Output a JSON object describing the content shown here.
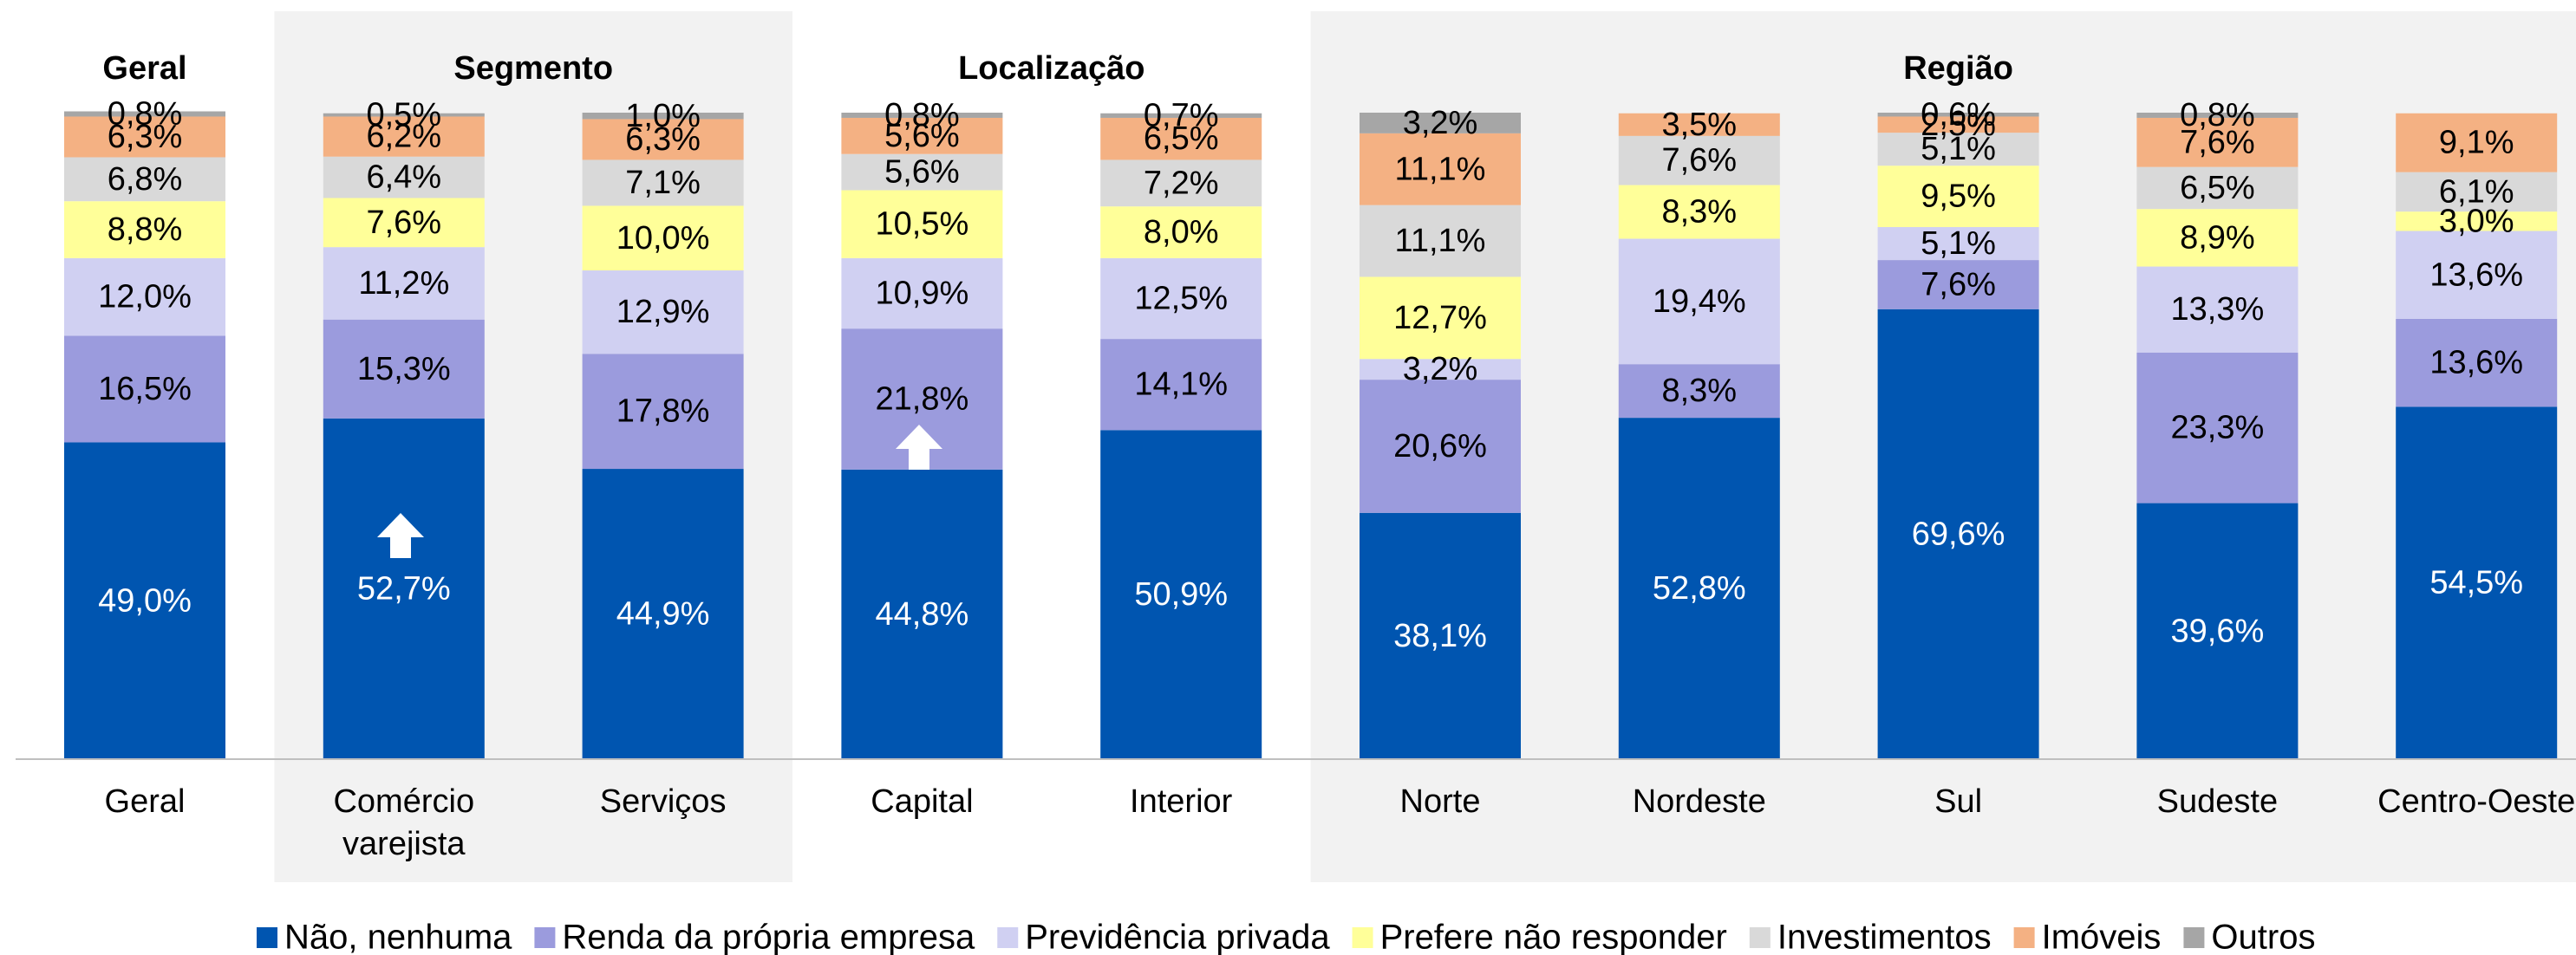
{
  "chart_data": {
    "type": "stacked_bar",
    "categories": [
      "Geral",
      "Comércio varejista",
      "Serviços",
      "Capital",
      "Interior",
      "Norte",
      "Nordeste",
      "Sul",
      "Sudeste",
      "Centro-Oeste"
    ],
    "groups": [
      {
        "label": "Geral",
        "start": 0,
        "end": 0,
        "shaded": false
      },
      {
        "label": "Segmento",
        "start": 1,
        "end": 2,
        "shaded": true
      },
      {
        "label": "Localização",
        "start": 3,
        "end": 4,
        "shaded": false
      },
      {
        "label": "Região",
        "start": 5,
        "end": 9,
        "shaded": true
      }
    ],
    "ylim": [
      0,
      100
    ],
    "series": [
      {
        "name": "Não, nenhuma",
        "color": "#0055b0",
        "label_color": "#ffffff",
        "values": [
          49.0,
          52.7,
          44.9,
          44.8,
          50.9,
          38.1,
          52.8,
          69.6,
          39.6,
          54.5
        ],
        "value_labels": [
          "49,0%",
          "52,7%",
          "44,9%",
          "44,8%",
          "50,9%",
          "38,1%",
          "52,8%",
          "69,6%",
          "39,6%",
          "54,5%"
        ]
      },
      {
        "name": "Renda da própria empresa",
        "color": "#9b9bdd",
        "label_color": "#000000",
        "values": [
          16.5,
          15.3,
          17.8,
          21.8,
          14.1,
          20.6,
          8.3,
          7.6,
          23.3,
          13.6
        ],
        "value_labels": [
          "16,5%",
          "15,3%",
          "17,8%",
          "21,8%",
          "14,1%",
          "20,6%",
          "8,3%",
          "7,6%",
          "23,3%",
          "13,6%"
        ]
      },
      {
        "name": "Previdência privada",
        "color": "#d0d0f2",
        "label_color": "#000000",
        "values": [
          12.0,
          11.2,
          12.9,
          10.9,
          12.5,
          3.2,
          19.4,
          5.1,
          13.3,
          13.6
        ],
        "value_labels": [
          "12,0%",
          "11,2%",
          "12,9%",
          "10,9%",
          "12,5%",
          "3,2%",
          "19,4%",
          "5,1%",
          "13,3%",
          "13,6%"
        ]
      },
      {
        "name": "Prefere não responder",
        "color": "#ffff99",
        "label_color": "#000000",
        "values": [
          8.8,
          7.6,
          10.0,
          10.5,
          8.0,
          12.7,
          8.3,
          9.5,
          8.9,
          3.0
        ],
        "value_labels": [
          "8,8%",
          "7,6%",
          "10,0%",
          "10,5%",
          "8,0%",
          "12,7%",
          "8,3%",
          "9,5%",
          "8,9%",
          "3,0%"
        ]
      },
      {
        "name": "Investimentos",
        "color": "#d9d9d9",
        "label_color": "#000000",
        "values": [
          6.8,
          6.4,
          7.1,
          5.6,
          7.2,
          11.1,
          7.6,
          5.1,
          6.5,
          6.1
        ],
        "value_labels": [
          "6,8%",
          "6,4%",
          "7,1%",
          "5,6%",
          "7,2%",
          "11,1%",
          "7,6%",
          "5,1%",
          "6,5%",
          "6,1%"
        ]
      },
      {
        "name": "Imóveis",
        "color": "#f4b183",
        "label_color": "#000000",
        "values": [
          6.3,
          6.2,
          6.3,
          5.6,
          6.5,
          11.1,
          3.5,
          2.5,
          7.6,
          9.1
        ],
        "value_labels": [
          "6,3%",
          "6,2%",
          "6,3%",
          "5,6%",
          "6,5%",
          "11,1%",
          "3,5%",
          "2,5%",
          "7,6%",
          "9,1%"
        ]
      },
      {
        "name": "Outros",
        "color": "#a6a6a6",
        "label_color": "#000000",
        "values": [
          0.8,
          0.5,
          1.0,
          0.8,
          0.7,
          3.2,
          null,
          0.6,
          0.8,
          null
        ],
        "value_labels": [
          "0,8%",
          "0,5%",
          "1,0%",
          "0,8%",
          "0,7%",
          "3,2%",
          null,
          "0,6%",
          "0,8%",
          null
        ]
      }
    ]
  }
}
